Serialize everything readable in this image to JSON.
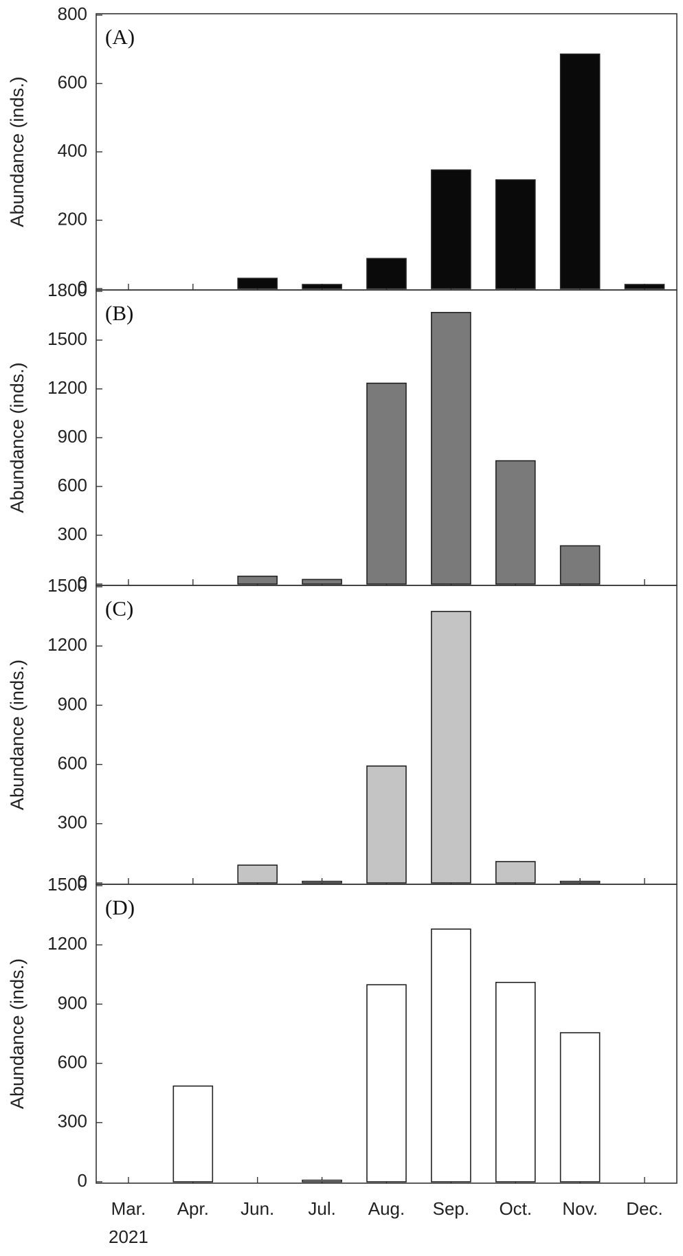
{
  "chart_data": [
    {
      "type": "bar",
      "panel_label": "(A)",
      "ylabel": "Abundance (inds.)",
      "ylim": [
        0,
        800
      ],
      "yticks": [
        0,
        200,
        400,
        600,
        800
      ],
      "color": "#0a0a0a",
      "categories": [
        "Mar.",
        "Apr.",
        "Jun.",
        "Jul.",
        "Aug.",
        "Sep.",
        "Oct.",
        "Nov.",
        "Dec."
      ],
      "values": [
        0,
        0,
        30,
        12,
        88,
        347,
        318,
        686,
        12
      ]
    },
    {
      "type": "bar",
      "panel_label": "(B)",
      "ylabel": "Abundance (inds.)",
      "ylim": [
        0,
        1800
      ],
      "yticks": [
        0,
        300,
        600,
        900,
        1200,
        1500,
        1800
      ],
      "color": "#7a7a7a",
      "categories": [
        "Mar.",
        "Apr.",
        "Jun.",
        "Jul.",
        "Aug.",
        "Sep.",
        "Oct.",
        "Nov.",
        "Dec."
      ],
      "values": [
        0,
        0,
        48,
        28,
        1235,
        1670,
        758,
        235,
        0
      ]
    },
    {
      "type": "bar",
      "panel_label": "(C)",
      "ylabel": "Abundance (inds.)",
      "ylim": [
        0,
        1500
      ],
      "yticks": [
        0,
        300,
        600,
        900,
        1200,
        1500
      ],
      "color": "#c4c4c4",
      "categories": [
        "Mar.",
        "Apr.",
        "Jun.",
        "Jul.",
        "Aug.",
        "Sep.",
        "Oct.",
        "Nov.",
        "Dec."
      ],
      "values": [
        0,
        0,
        90,
        8,
        592,
        1375,
        108,
        8,
        0
      ]
    },
    {
      "type": "bar",
      "panel_label": "(D)",
      "ylabel": "Abundance (inds.)",
      "ylim": [
        0,
        1500
      ],
      "yticks": [
        0,
        300,
        600,
        900,
        1200,
        1500
      ],
      "color": "#ffffff",
      "categories": [
        "Mar.",
        "Apr.",
        "Jun.",
        "Jul.",
        "Aug.",
        "Sep.",
        "Oct.",
        "Nov.",
        "Dec."
      ],
      "values": [
        0,
        485,
        0,
        8,
        998,
        1280,
        1010,
        755,
        0
      ]
    }
  ],
  "x_axis": {
    "tick_labels": [
      "Mar.",
      "Apr.",
      "Jun.",
      "Jul.",
      "Aug.",
      "Sep.",
      "Oct.",
      "Nov.",
      "Dec."
    ],
    "year_label": "2021"
  },
  "colors": {
    "axis": "#333333",
    "bar_edge": "#222222"
  }
}
